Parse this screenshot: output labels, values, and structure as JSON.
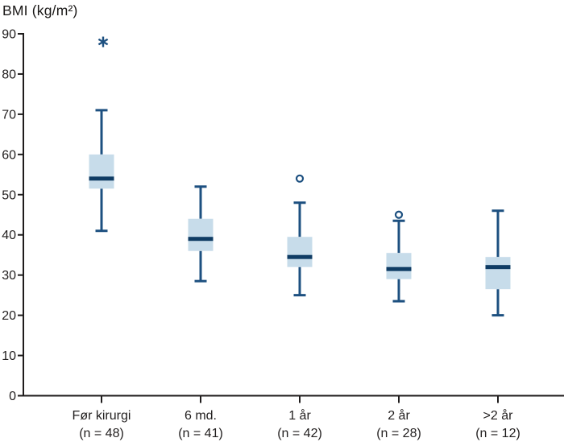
{
  "chart_data": {
    "type": "boxplot",
    "title": "BMI (kg/m²)",
    "y_axis": {
      "min": 0,
      "max": 90,
      "ticks": [
        0,
        10,
        20,
        30,
        40,
        50,
        60,
        70,
        80,
        90
      ],
      "grid": false
    },
    "legend": null,
    "boxes": [
      {
        "label": "Før kirurgi",
        "sublabel": "(n = 48)",
        "whisker_low": 41,
        "q1": 51.5,
        "median": 54,
        "q3": 60,
        "whisker_high": 71,
        "outliers": [
          {
            "value": 88,
            "marker": "asterisk"
          }
        ]
      },
      {
        "label": "6 md.",
        "sublabel": "(n = 41)",
        "whisker_low": 28.5,
        "q1": 36,
        "median": 39,
        "q3": 44,
        "whisker_high": 52,
        "outliers": []
      },
      {
        "label": "1 år",
        "sublabel": "(n = 42)",
        "whisker_low": 25,
        "q1": 32,
        "median": 34.5,
        "q3": 39.5,
        "whisker_high": 48,
        "outliers": [
          {
            "value": 54,
            "marker": "circle"
          }
        ]
      },
      {
        "label": "2 år",
        "sublabel": "(n = 28)",
        "whisker_low": 23.5,
        "q1": 29,
        "median": 31.5,
        "q3": 35.5,
        "whisker_high": 43.5,
        "outliers": [
          {
            "value": 45,
            "marker": "circle"
          }
        ]
      },
      {
        "label": ">2 år",
        "sublabel": "(n = 12)",
        "whisker_low": 20,
        "q1": 26.5,
        "median": 32,
        "q3": 34.5,
        "whisker_high": 46,
        "outliers": []
      }
    ],
    "colors": {
      "box_fill": "#c7dcea",
      "whisker": "#1d5080",
      "median": "#0f3c64",
      "outlier": "#1d5080",
      "axis": "#1f1c1c",
      "text": "#211e1e"
    }
  }
}
